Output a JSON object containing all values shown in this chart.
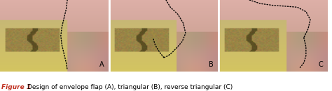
{
  "figure_width": 4.74,
  "figure_height": 1.31,
  "dpi": 100,
  "panels": [
    "A",
    "B",
    "C"
  ],
  "caption_bold": "Figure 1",
  "caption_text": "Design of envelope flap (A), triangular (B), reverse triangular (C)",
  "caption_fontsize": 6.5,
  "caption_bold_fontsize": 6.5,
  "bg_color": "#ffffff",
  "panel_label_color": "#000000",
  "panel_label_fontsize": 7,
  "tissue_top": "#d4a090",
  "tissue_mid": "#c08878",
  "tissue_dark": "#a06858",
  "gum_pink": "#e0b0a0",
  "tooth_color": "#c8b870",
  "tooth_dark": "#a09050",
  "tooth_groove": "#806830",
  "white_tissue": "#f0e0d8",
  "caption_italic_color": "#c03020"
}
